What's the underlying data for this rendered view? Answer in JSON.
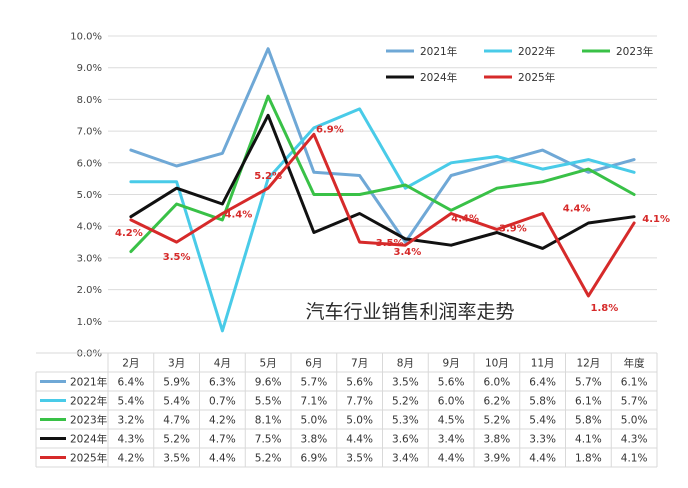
{
  "chart_data": {
    "type": "line",
    "title": "汽车行业销售利润率走势",
    "categories": [
      "2月",
      "3月",
      "4月",
      "5月",
      "6月",
      "7月",
      "8月",
      "9月",
      "10月",
      "11月",
      "12月",
      "年度"
    ],
    "ylim": [
      0,
      10
    ],
    "yticks": [
      "0.0%",
      "1.0%",
      "2.0%",
      "3.0%",
      "4.0%",
      "5.0%",
      "6.0%",
      "7.0%",
      "8.0%",
      "9.0%",
      "10.0%"
    ],
    "grid": true,
    "legend_position": "top-right",
    "colors": {
      "2021年": "#6fa8d6",
      "2022年": "#49cbe8",
      "2023年": "#39c147",
      "2024年": "#111111",
      "2025年": "#d62a2a"
    },
    "series": [
      {
        "name": "2021年",
        "values": [
          6.4,
          5.9,
          6.3,
          9.6,
          5.7,
          5.6,
          3.5,
          5.6,
          6.0,
          6.4,
          5.7,
          6.1
        ],
        "table": [
          "6.4%",
          "5.9%",
          "6.3%",
          "9.6%",
          "5.7%",
          "5.6%",
          "3.5%",
          "5.6%",
          "6.0%",
          "6.4%",
          "5.7%",
          "6.1%"
        ]
      },
      {
        "name": "2022年",
        "values": [
          5.4,
          5.4,
          0.7,
          5.5,
          7.1,
          7.7,
          5.2,
          6.0,
          6.2,
          5.8,
          6.1,
          5.7
        ],
        "table": [
          "5.4%",
          "5.4%",
          "0.7%",
          "5.5%",
          "7.1%",
          "7.7%",
          "5.2%",
          "6.0%",
          "6.2%",
          "5.8%",
          "6.1%",
          "5.7%"
        ]
      },
      {
        "name": "2023年",
        "values": [
          3.2,
          4.7,
          4.2,
          8.1,
          5.0,
          5.0,
          5.3,
          4.5,
          5.2,
          5.4,
          5.8,
          5.0
        ],
        "table": [
          "3.2%",
          "4.7%",
          "4.2%",
          "8.1%",
          "5.0%",
          "5.0%",
          "5.3%",
          "4.5%",
          "5.2%",
          "5.4%",
          "5.8%",
          "5.0%"
        ]
      },
      {
        "name": "2024年",
        "values": [
          4.3,
          5.2,
          4.7,
          7.5,
          3.8,
          4.4,
          3.6,
          3.4,
          3.8,
          3.3,
          4.1,
          4.3
        ],
        "table": [
          "4.3%",
          "5.2%",
          "4.7%",
          "7.5%",
          "3.8%",
          "4.4%",
          "3.6%",
          "3.4%",
          "3.8%",
          "3.3%",
          "4.1%",
          "4.3%"
        ]
      },
      {
        "name": "2025年",
        "values": [
          4.2,
          3.5,
          4.4,
          5.2,
          6.9,
          3.5,
          3.4,
          4.4,
          3.9,
          4.4,
          1.8,
          4.1
        ],
        "table": [
          "4.2%",
          "3.5%",
          "4.4%",
          "5.2%",
          "6.9%",
          "3.5%",
          "3.4%",
          "4.4%",
          "3.9%",
          "4.4%",
          "1.8%",
          "4.1%"
        ],
        "data_labels": [
          "4.2%",
          "3.5%",
          "4.4%",
          "5.2%",
          "6.9%",
          "3.5%",
          "3.4%",
          "4.4%",
          "3.9%",
          "4.4%",
          "1.8%",
          "4.1%"
        ]
      }
    ]
  }
}
